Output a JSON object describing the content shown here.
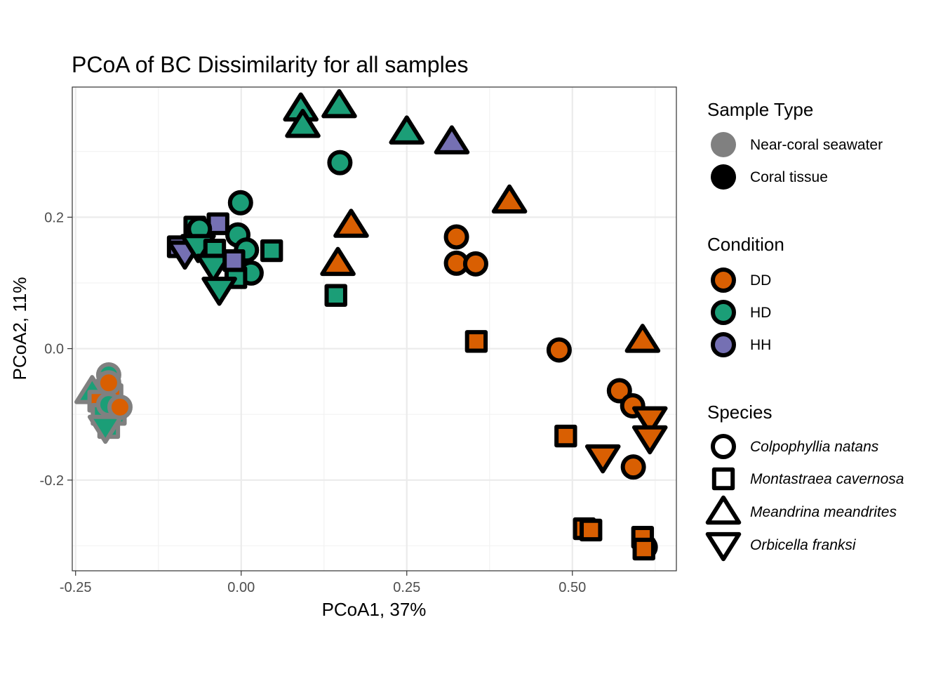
{
  "chart_data": {
    "type": "scatter",
    "title": "PCoA of BC Dissimilarity for all samples",
    "xlabel": "PCoA1, 37%",
    "ylabel": "PCoA2, 11%",
    "xlim": [
      -0.255,
      0.657
    ],
    "ylim": [
      -0.338,
      0.398
    ],
    "x_ticks": [
      -0.25,
      0.0,
      0.25,
      0.5
    ],
    "x_tick_labels": [
      "-0.25",
      "0.00",
      "0.25",
      "0.50"
    ],
    "y_ticks": [
      -0.2,
      0.0,
      0.2
    ],
    "y_tick_labels": [
      "-0.2",
      "0.0",
      "0.2"
    ],
    "grid": true,
    "legend_position": "right",
    "colors": {
      "DD": "#d95f02",
      "HD": "#1b9e77",
      "HH": "#7570b3"
    },
    "outline_colors": {
      "Near-coral seawater": "#808080",
      "Coral tissue": "#000000"
    },
    "legends": [
      {
        "title": "Sample Type",
        "items": [
          {
            "label": "Near-coral seawater",
            "key": "seawater"
          },
          {
            "label": "Coral tissue",
            "key": "tissue"
          }
        ]
      },
      {
        "title": "Condition",
        "items": [
          {
            "label": "DD",
            "key": "DD"
          },
          {
            "label": "HD",
            "key": "HD"
          },
          {
            "label": "HH",
            "key": "HH"
          }
        ]
      },
      {
        "title": "Species",
        "items": [
          {
            "label": "Colpophyllia natans",
            "key": "circle"
          },
          {
            "label": "Montastraea cavernosa",
            "key": "square"
          },
          {
            "label": "Meandrina meandrites",
            "key": "triangle"
          },
          {
            "label": "Orbicella franksi",
            "key": "inv_triangle"
          }
        ]
      }
    ],
    "points": [
      {
        "x": -0.2,
        "y": -0.04,
        "condition": "HD",
        "species": "circle",
        "sample": "seawater"
      },
      {
        "x": -0.21,
        "y": -0.06,
        "condition": "HD",
        "species": "triangle",
        "sample": "seawater"
      },
      {
        "x": -0.225,
        "y": -0.065,
        "condition": "HD",
        "species": "triangle",
        "sample": "seawater"
      },
      {
        "x": -0.195,
        "y": -0.07,
        "condition": "DD",
        "species": "square",
        "sample": "seawater"
      },
      {
        "x": -0.215,
        "y": -0.08,
        "condition": "DD",
        "species": "square",
        "sample": "seawater"
      },
      {
        "x": -0.19,
        "y": -0.1,
        "condition": "HD",
        "species": "square",
        "sample": "seawater"
      },
      {
        "x": -0.21,
        "y": -0.1,
        "condition": "HD",
        "species": "square",
        "sample": "seawater"
      },
      {
        "x": -0.2,
        "y": -0.12,
        "condition": "HD",
        "species": "square",
        "sample": "seawater"
      },
      {
        "x": -0.2,
        "y": -0.085,
        "condition": "HD",
        "species": "circle",
        "sample": "seawater"
      },
      {
        "x": -0.205,
        "y": -0.12,
        "condition": "HD",
        "species": "inv_triangle",
        "sample": "seawater"
      },
      {
        "x": -0.2,
        "y": -0.052,
        "condition": "DD",
        "species": "circle",
        "sample": "seawater"
      },
      {
        "x": -0.183,
        "y": -0.089,
        "condition": "DD",
        "species": "circle",
        "sample": "seawater"
      },
      {
        "x": 0.09,
        "y": 0.365,
        "condition": "HD",
        "species": "triangle",
        "sample": "tissue"
      },
      {
        "x": 0.093,
        "y": 0.34,
        "condition": "HD",
        "species": "triangle",
        "sample": "tissue"
      },
      {
        "x": 0.148,
        "y": 0.37,
        "condition": "HD",
        "species": "triangle",
        "sample": "tissue"
      },
      {
        "x": 0.25,
        "y": 0.33,
        "condition": "HD",
        "species": "triangle",
        "sample": "tissue"
      },
      {
        "x": 0.318,
        "y": 0.315,
        "condition": "HH",
        "species": "triangle",
        "sample": "tissue"
      },
      {
        "x": 0.149,
        "y": 0.283,
        "condition": "HD",
        "species": "circle",
        "sample": "tissue"
      },
      {
        "x": 0.405,
        "y": 0.225,
        "condition": "DD",
        "species": "triangle",
        "sample": "tissue"
      },
      {
        "x": 0.166,
        "y": 0.188,
        "condition": "DD",
        "species": "triangle",
        "sample": "tissue"
      },
      {
        "x": 0.146,
        "y": 0.13,
        "condition": "DD",
        "species": "triangle",
        "sample": "tissue"
      },
      {
        "x": 0.143,
        "y": 0.081,
        "condition": "HD",
        "species": "square",
        "sample": "tissue"
      },
      {
        "x": -0.001,
        "y": 0.222,
        "condition": "HD",
        "species": "circle",
        "sample": "tissue"
      },
      {
        "x": -0.095,
        "y": 0.155,
        "condition": "HH",
        "species": "square",
        "sample": "tissue"
      },
      {
        "x": -0.07,
        "y": 0.185,
        "condition": "HD",
        "species": "square",
        "sample": "tissue"
      },
      {
        "x": -0.035,
        "y": 0.19,
        "condition": "HH",
        "species": "square",
        "sample": "tissue"
      },
      {
        "x": -0.063,
        "y": 0.182,
        "condition": "HD",
        "species": "circle",
        "sample": "tissue"
      },
      {
        "x": -0.005,
        "y": 0.173,
        "condition": "HD",
        "species": "circle",
        "sample": "tissue"
      },
      {
        "x": 0.008,
        "y": 0.15,
        "condition": "HD",
        "species": "circle",
        "sample": "tissue"
      },
      {
        "x": 0.046,
        "y": 0.149,
        "condition": "HD",
        "species": "square",
        "sample": "tissue"
      },
      {
        "x": -0.085,
        "y": 0.145,
        "condition": "HH",
        "species": "inv_triangle",
        "sample": "tissue"
      },
      {
        "x": -0.065,
        "y": 0.155,
        "condition": "HD",
        "species": "inv_triangle",
        "sample": "tissue"
      },
      {
        "x": -0.04,
        "y": 0.15,
        "condition": "HD",
        "species": "square",
        "sample": "tissue"
      },
      {
        "x": -0.042,
        "y": 0.125,
        "condition": "HD",
        "species": "inv_triangle",
        "sample": "tissue"
      },
      {
        "x": 0.015,
        "y": 0.115,
        "condition": "HD",
        "species": "circle",
        "sample": "tissue"
      },
      {
        "x": -0.008,
        "y": 0.108,
        "condition": "HD",
        "species": "square",
        "sample": "tissue"
      },
      {
        "x": -0.011,
        "y": 0.134,
        "condition": "HH",
        "species": "square",
        "sample": "tissue"
      },
      {
        "x": -0.033,
        "y": 0.09,
        "condition": "HD",
        "species": "inv_triangle",
        "sample": "tissue"
      },
      {
        "x": 0.325,
        "y": 0.17,
        "condition": "DD",
        "species": "circle",
        "sample": "tissue"
      },
      {
        "x": 0.325,
        "y": 0.13,
        "condition": "DD",
        "species": "circle",
        "sample": "tissue"
      },
      {
        "x": 0.354,
        "y": 0.129,
        "condition": "DD",
        "species": "circle",
        "sample": "tissue"
      },
      {
        "x": 0.355,
        "y": 0.011,
        "condition": "DD",
        "species": "square",
        "sample": "tissue"
      },
      {
        "x": 0.48,
        "y": -0.002,
        "condition": "DD",
        "species": "circle",
        "sample": "tissue"
      },
      {
        "x": 0.606,
        "y": 0.013,
        "condition": "DD",
        "species": "triangle",
        "sample": "tissue"
      },
      {
        "x": 0.571,
        "y": -0.064,
        "condition": "DD",
        "species": "circle",
        "sample": "tissue"
      },
      {
        "x": 0.591,
        "y": -0.087,
        "condition": "DD",
        "species": "circle",
        "sample": "tissue"
      },
      {
        "x": 0.617,
        "y": -0.107,
        "condition": "DD",
        "species": "inv_triangle",
        "sample": "tissue"
      },
      {
        "x": 0.617,
        "y": -0.136,
        "condition": "DD",
        "species": "inv_triangle",
        "sample": "tissue"
      },
      {
        "x": 0.49,
        "y": -0.133,
        "condition": "DD",
        "species": "square",
        "sample": "tissue"
      },
      {
        "x": 0.546,
        "y": -0.165,
        "condition": "DD",
        "species": "inv_triangle",
        "sample": "tissue"
      },
      {
        "x": 0.592,
        "y": -0.18,
        "condition": "DD",
        "species": "circle",
        "sample": "tissue"
      },
      {
        "x": 0.518,
        "y": -0.274,
        "condition": "DD",
        "species": "square",
        "sample": "tissue"
      },
      {
        "x": 0.528,
        "y": -0.276,
        "condition": "DD",
        "species": "square",
        "sample": "tissue"
      },
      {
        "x": 0.61,
        "y": -0.302,
        "condition": "DD",
        "species": "circle",
        "sample": "tissue"
      },
      {
        "x": 0.606,
        "y": -0.287,
        "condition": "DD",
        "species": "square",
        "sample": "tissue"
      },
      {
        "x": 0.608,
        "y": -0.305,
        "condition": "DD",
        "species": "square",
        "sample": "tissue"
      }
    ]
  }
}
